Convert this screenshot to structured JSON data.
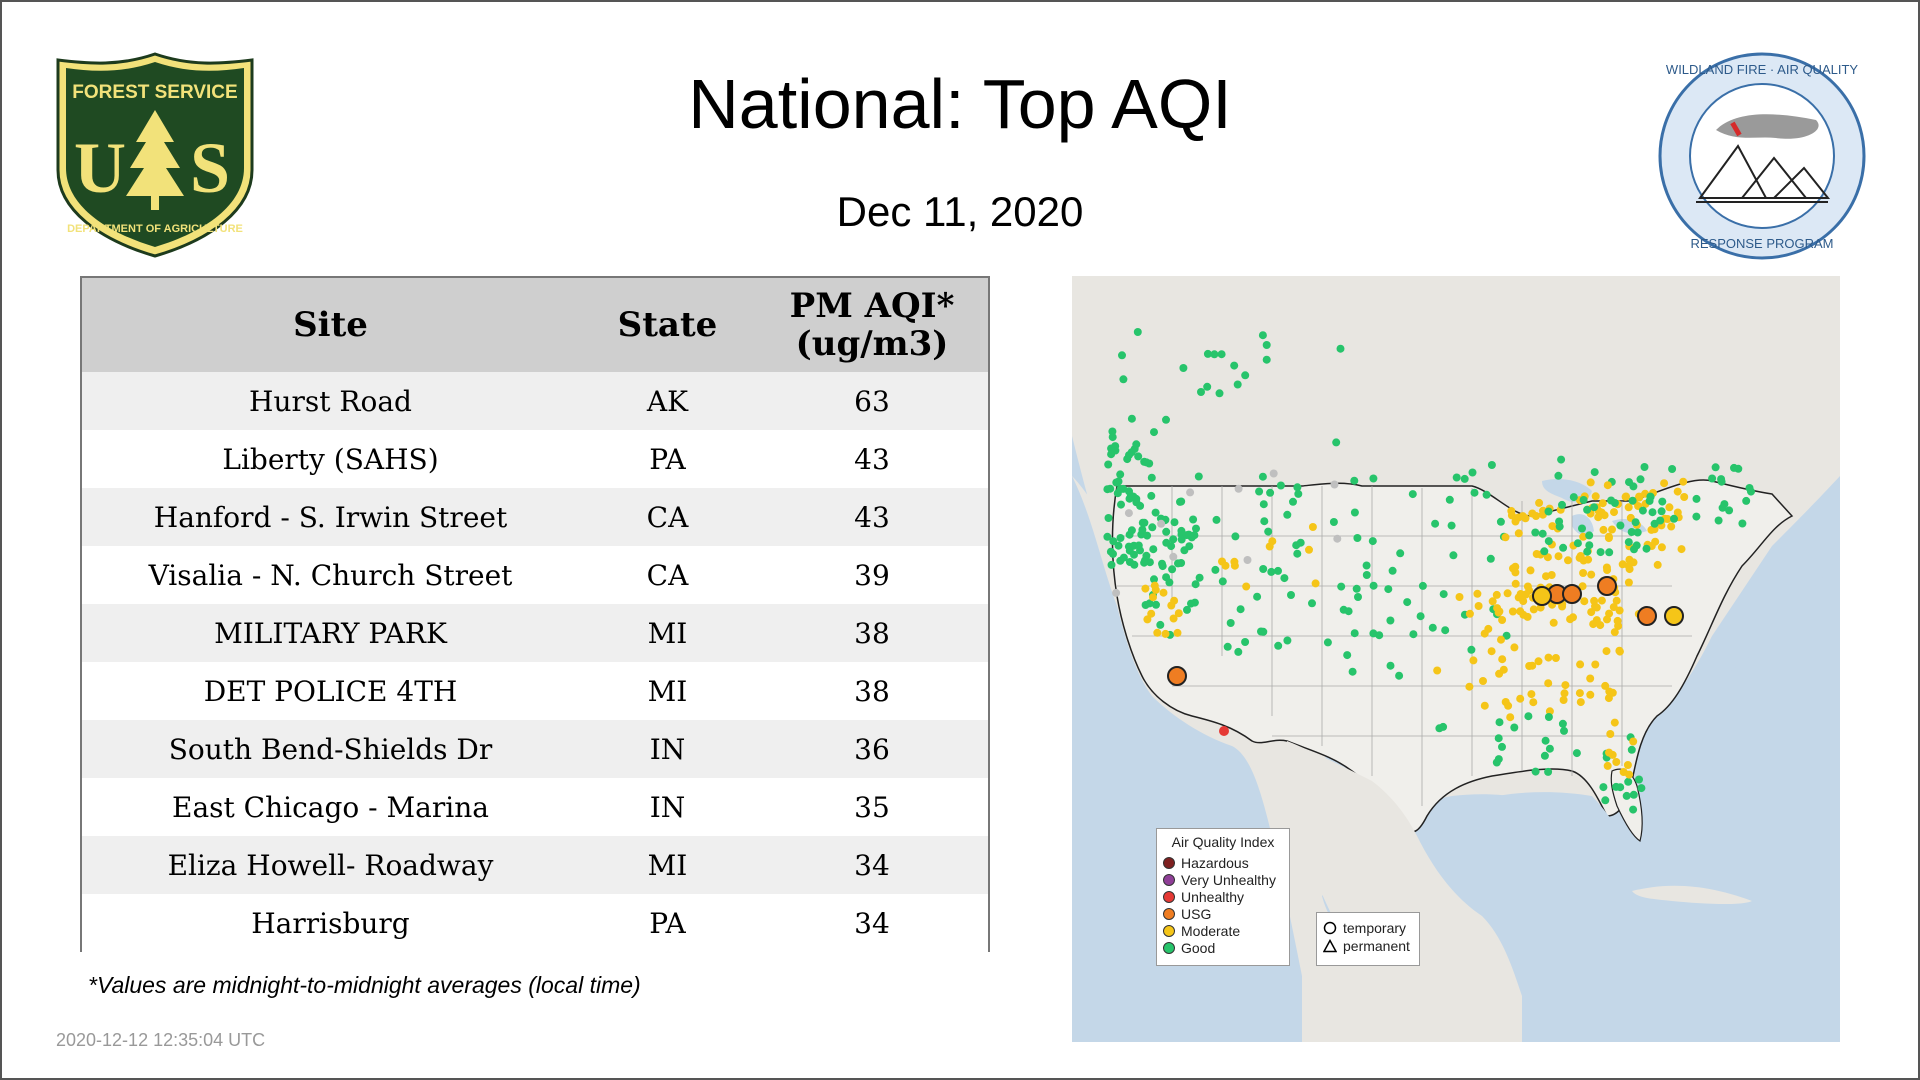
{
  "title": "National: Top AQI",
  "date": "Dec 11, 2020",
  "logos": {
    "forest_service": {
      "top": "FOREST SERVICE",
      "letters": "US",
      "bottom": "DEPARTMENT OF AGRICULTURE"
    },
    "wildland": {
      "top": "WILDLAND FIRE · AIR QUALITY",
      "bottom": "RESPONSE PROGRAM"
    }
  },
  "table": {
    "headers": {
      "site": "Site",
      "state": "State",
      "aqi_line1": "PM AQI*",
      "aqi_line2": "(ug/m3)"
    },
    "rows": [
      {
        "site": "Hurst Road",
        "state": "AK",
        "aqi": "63"
      },
      {
        "site": "Liberty (SAHS)",
        "state": "PA",
        "aqi": "43"
      },
      {
        "site": "Hanford - S. Irwin Street",
        "state": "CA",
        "aqi": "43"
      },
      {
        "site": "Visalia - N. Church Street",
        "state": "CA",
        "aqi": "39"
      },
      {
        "site": "MILITARY PARK",
        "state": "MI",
        "aqi": "38"
      },
      {
        "site": "DET POLICE 4TH",
        "state": "MI",
        "aqi": "38"
      },
      {
        "site": "South Bend-Shields Dr",
        "state": "IN",
        "aqi": "36"
      },
      {
        "site": "East Chicago - Marina",
        "state": "IN",
        "aqi": "35"
      },
      {
        "site": "Eliza Howell- Roadway",
        "state": "MI",
        "aqi": "34"
      },
      {
        "site": "Harrisburg",
        "state": "PA",
        "aqi": "34"
      }
    ]
  },
  "footnote": "*Values are midnight-to-midnight averages (local time)",
  "timestamp": "2020-12-12 12:35:04 UTC",
  "legend": {
    "title": "Air Quality Index",
    "items": [
      {
        "label": "Hazardous",
        "color": "#7e2020"
      },
      {
        "label": "Very Unhealthy",
        "color": "#8f3f97"
      },
      {
        "label": "Unhealthy",
        "color": "#e53935"
      },
      {
        "label": "USG",
        "color": "#ef7d22"
      },
      {
        "label": "Moderate",
        "color": "#f5c518"
      },
      {
        "label": "Good",
        "color": "#27c46b"
      }
    ],
    "temporary": "temporary",
    "permanent": "permanent"
  },
  "colors": {
    "good": "#27c46b",
    "moderate": "#f5c518",
    "usg": "#ef7d22",
    "unhealthy": "#e53935",
    "nodata": "#bfbfbf"
  }
}
